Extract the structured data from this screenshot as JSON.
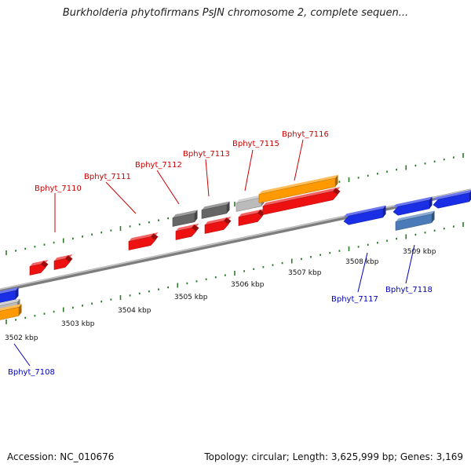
{
  "title": "Burkholderia phytofirmans PsJN chromosome 2, complete sequen...",
  "footer": {
    "accession": "Accession: NC_010676",
    "summary": "Topology: circular; Length: 3,625,999 bp; Genes: 3,169"
  },
  "colors": {
    "forward_gene": "#ee1111",
    "reverse_gene": "#1a2ee6",
    "forward_label": "#cc0000",
    "reverse_label": "#0000bb",
    "pseudo_gene": "#666666",
    "rna_gene": "#ff9900",
    "other_gene": "#bbbbbb",
    "operon_gene": "#4a7ab8",
    "tick": "#2a7a2a",
    "backbone": "#888888"
  },
  "scale_labels": [
    "3502 kbp",
    "3503 kbp",
    "3504 kbp",
    "3505 kbp",
    "3506 kbp",
    "3507 kbp",
    "3508 kbp",
    "3509 kbp"
  ],
  "gene_labels": {
    "forward": [
      "Bphyt_7110",
      "Bphyt_7111",
      "Bphyt_7112",
      "Bphyt_7113",
      "Bphyt_7115",
      "Bphyt_7116"
    ],
    "reverse": [
      "Bphyt_7108",
      "Bphyt_7117",
      "Bphyt_7118"
    ]
  }
}
